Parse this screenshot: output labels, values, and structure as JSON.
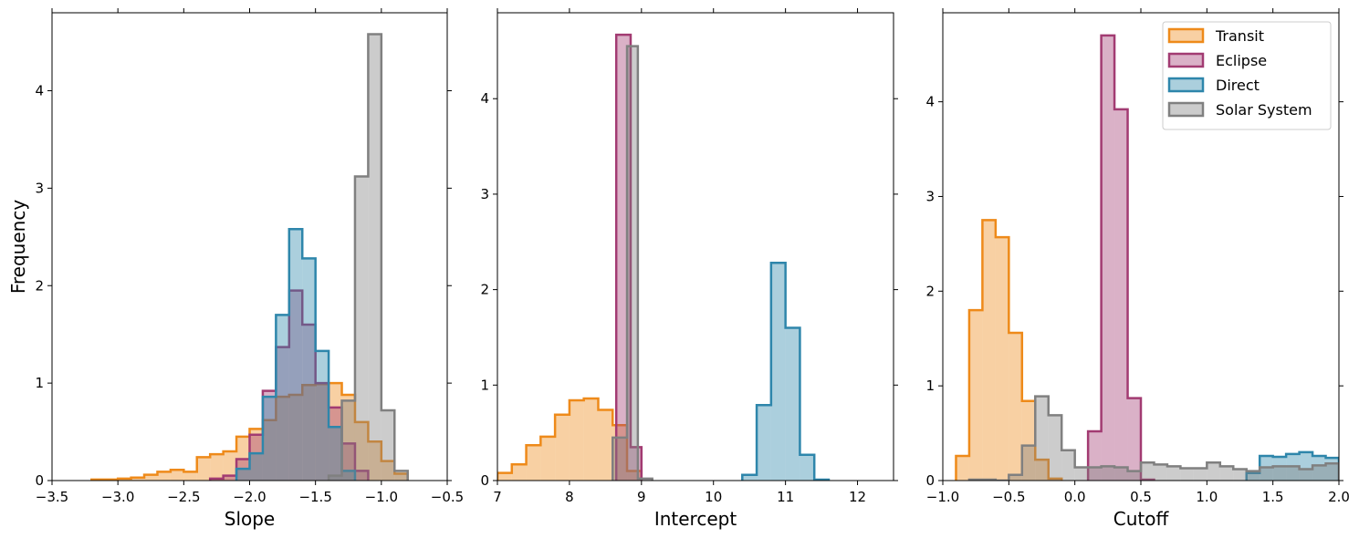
{
  "chart_data": [
    {
      "type": "histogram",
      "xlabel": "Slope",
      "ylabel": "Frequency",
      "xlim": [
        -3.5,
        -0.5
      ],
      "ylim": [
        0,
        4.8
      ],
      "xticks": [
        {
          "value": -3.5,
          "label": "−3.5"
        },
        {
          "value": -3.0,
          "label": "−3.0"
        },
        {
          "value": -2.5,
          "label": "−2.5"
        },
        {
          "value": -2.0,
          "label": "−2.0"
        },
        {
          "value": -1.5,
          "label": "−1.5"
        },
        {
          "value": -1.0,
          "label": "−1.0"
        },
        {
          "value": -0.5,
          "label": "−0.5"
        }
      ],
      "yticks": [
        0,
        1,
        2,
        3,
        4
      ],
      "series": [
        {
          "color": "#ee8a1a",
          "bins": [
            -3.2,
            -3.1,
            -3.0,
            -2.9,
            -2.8,
            -2.7,
            -2.6,
            -2.5,
            -2.4,
            -2.3,
            -2.2,
            -2.1,
            -2.0,
            -1.9,
            -1.8,
            -1.7,
            -1.6,
            -1.5,
            -1.4,
            -1.3,
            -1.2,
            -1.1,
            -1.0,
            -0.9,
            -0.8
          ],
          "values": [
            0.01,
            0.01,
            0.02,
            0.03,
            0.06,
            0.09,
            0.11,
            0.09,
            0.24,
            0.27,
            0.3,
            0.45,
            0.53,
            0.62,
            0.86,
            0.88,
            0.98,
            0.99,
            1.0,
            0.88,
            0.6,
            0.4,
            0.2,
            0.07
          ]
        },
        {
          "color": "#a23b72",
          "bins": [
            -2.3,
            -2.2,
            -2.1,
            -2.0,
            -1.9,
            -1.8,
            -1.7,
            -1.6,
            -1.5,
            -1.4,
            -1.3,
            -1.2,
            -1.1
          ],
          "values": [
            0.02,
            0.05,
            0.22,
            0.47,
            0.92,
            1.37,
            1.95,
            1.6,
            1.0,
            0.75,
            0.38,
            0.1
          ]
        },
        {
          "color": "#2e86ab",
          "bins": [
            -2.1,
            -2.0,
            -1.9,
            -1.8,
            -1.7,
            -1.6,
            -1.5,
            -1.4,
            -1.3,
            -1.2
          ],
          "values": [
            0.12,
            0.28,
            0.86,
            1.7,
            2.58,
            2.28,
            1.33,
            0.55,
            0.1
          ]
        },
        {
          "color": "#808080",
          "bins": [
            -1.4,
            -1.3,
            -1.2,
            -1.1,
            -1.0,
            -0.9,
            -0.8
          ],
          "values": [
            0.05,
            0.82,
            3.12,
            4.58,
            0.72,
            0.1
          ]
        }
      ]
    },
    {
      "type": "histogram",
      "xlabel": "Intercept",
      "xlim": [
        7,
        12.5
      ],
      "ylim": [
        0,
        4.9
      ],
      "xticks": [
        7,
        8,
        9,
        10,
        11,
        12
      ],
      "yticks": [
        0,
        1,
        2,
        3,
        4
      ],
      "series": [
        {
          "color": "#ee8a1a",
          "bins": [
            7.0,
            7.2,
            7.4,
            7.6,
            7.8,
            8.0,
            8.2,
            8.4,
            8.6,
            8.8,
            9.0
          ],
          "values": [
            0.08,
            0.17,
            0.37,
            0.46,
            0.69,
            0.84,
            0.86,
            0.74,
            0.58,
            0.1
          ]
        },
        {
          "color": "#a23b72",
          "bins": [
            8.65,
            8.85,
            9.0
          ],
          "values": [
            4.67,
            0.35
          ]
        },
        {
          "color": "#2e86ab",
          "bins": [
            10.4,
            10.6,
            10.8,
            11.0,
            11.2,
            11.4,
            11.6
          ],
          "values": [
            0.06,
            0.79,
            2.28,
            1.6,
            0.27,
            0.01
          ]
        },
        {
          "color": "#808080",
          "bins": [
            8.6,
            8.8,
            8.95,
            9.15
          ],
          "values": [
            0.45,
            4.55,
            0.02
          ]
        }
      ]
    },
    {
      "type": "histogram",
      "xlabel": "Cutoff",
      "xlim": [
        -1.0,
        2.0
      ],
      "ylim": [
        0,
        4.94
      ],
      "xticks": [
        {
          "value": -1.0,
          "label": "−1.0"
        },
        {
          "value": -0.5,
          "label": "−0.5"
        },
        {
          "value": 0.0,
          "label": "0.0"
        },
        0.5,
        {
          "value": 1.0,
          "label": "1.0"
        },
        1.5,
        {
          "value": 2.0,
          "label": "2.0"
        }
      ],
      "yticks": [
        0,
        1,
        2,
        3,
        4
      ],
      "legend": "upper right",
      "series": [
        {
          "name": "Transit",
          "color": "#ee8a1a",
          "bins": [
            -0.9,
            -0.8,
            -0.7,
            -0.6,
            -0.5,
            -0.4,
            -0.3,
            -0.2,
            -0.1
          ],
          "values": [
            0.26,
            1.8,
            2.75,
            2.57,
            1.56,
            0.84,
            0.22,
            0.02
          ]
        },
        {
          "name": "Eclipse",
          "color": "#a23b72",
          "bins": [
            0.1,
            0.2,
            0.3,
            0.4,
            0.5,
            0.6
          ],
          "values": [
            0.52,
            4.7,
            3.92,
            0.87,
            0.01
          ]
        },
        {
          "name": "Direct",
          "color": "#2e86ab",
          "bins": [
            1.3,
            1.4,
            1.5,
            1.6,
            1.7,
            1.8,
            1.9,
            2.0
          ],
          "values": [
            0.08,
            0.26,
            0.25,
            0.28,
            0.3,
            0.26,
            0.24
          ]
        },
        {
          "name": "Solar System",
          "color": "#808080",
          "bins": [
            -0.8,
            -0.7,
            -0.6,
            -0.5,
            -0.4,
            -0.3,
            -0.2,
            -0.1,
            0.0,
            0.1,
            0.2,
            0.3,
            0.4,
            0.5,
            0.6,
            0.7,
            0.8,
            0.9,
            1.0,
            1.1,
            1.2,
            1.3,
            1.4,
            1.5,
            1.6,
            1.7,
            1.8,
            1.9,
            2.0
          ],
          "values": [
            0.01,
            0.01,
            0.0,
            0.06,
            0.37,
            0.89,
            0.69,
            0.32,
            0.14,
            0.14,
            0.15,
            0.14,
            0.1,
            0.19,
            0.17,
            0.15,
            0.13,
            0.13,
            0.19,
            0.15,
            0.12,
            0.1,
            0.14,
            0.15,
            0.15,
            0.12,
            0.16,
            0.18
          ]
        }
      ]
    }
  ]
}
